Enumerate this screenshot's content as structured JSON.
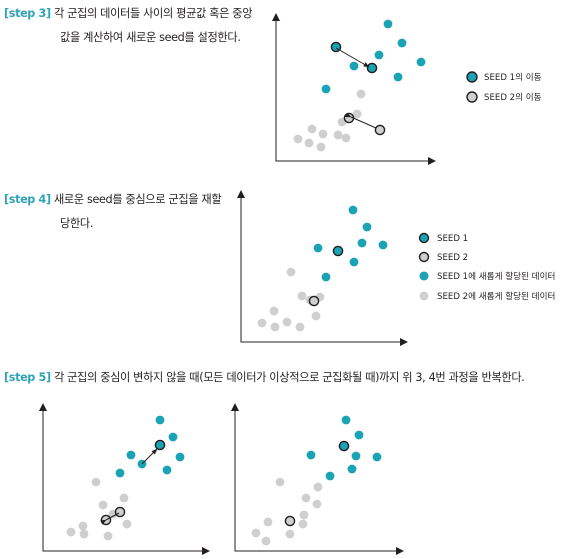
{
  "steps": {
    "step3": {
      "tag": "[step 3]",
      "line1": "각 군집의 데이터들 사이의 평균값 혹은 중앙",
      "line2": "값을 계산하여 새로운 seed를 설정한다.",
      "legend": [
        "SEED 1의 이동",
        "SEED 2의 이동"
      ]
    },
    "step4": {
      "tag": "[step 4]",
      "line1": "새로운 seed를 중심으로 군집을 재할",
      "line2": "당한다.",
      "legend": [
        "SEED 1",
        "SEED 2",
        "SEED 1에 새롭게 할당된 데이터",
        "SEED 2에 새롭게 할당된 데이터"
      ]
    },
    "step5": {
      "tag": "[step 5]",
      "text": "각 군집의 중심이 변하지 않을 때(모든 데이터가 이상적으로 군집화될 때)까지 위 3, 4번 과정을 반복한다."
    }
  },
  "colors": {
    "teal": "#1aa3b5",
    "gray": "#cfcfcf",
    "outline": "#231f20",
    "tag": "#2fa3b8"
  }
}
